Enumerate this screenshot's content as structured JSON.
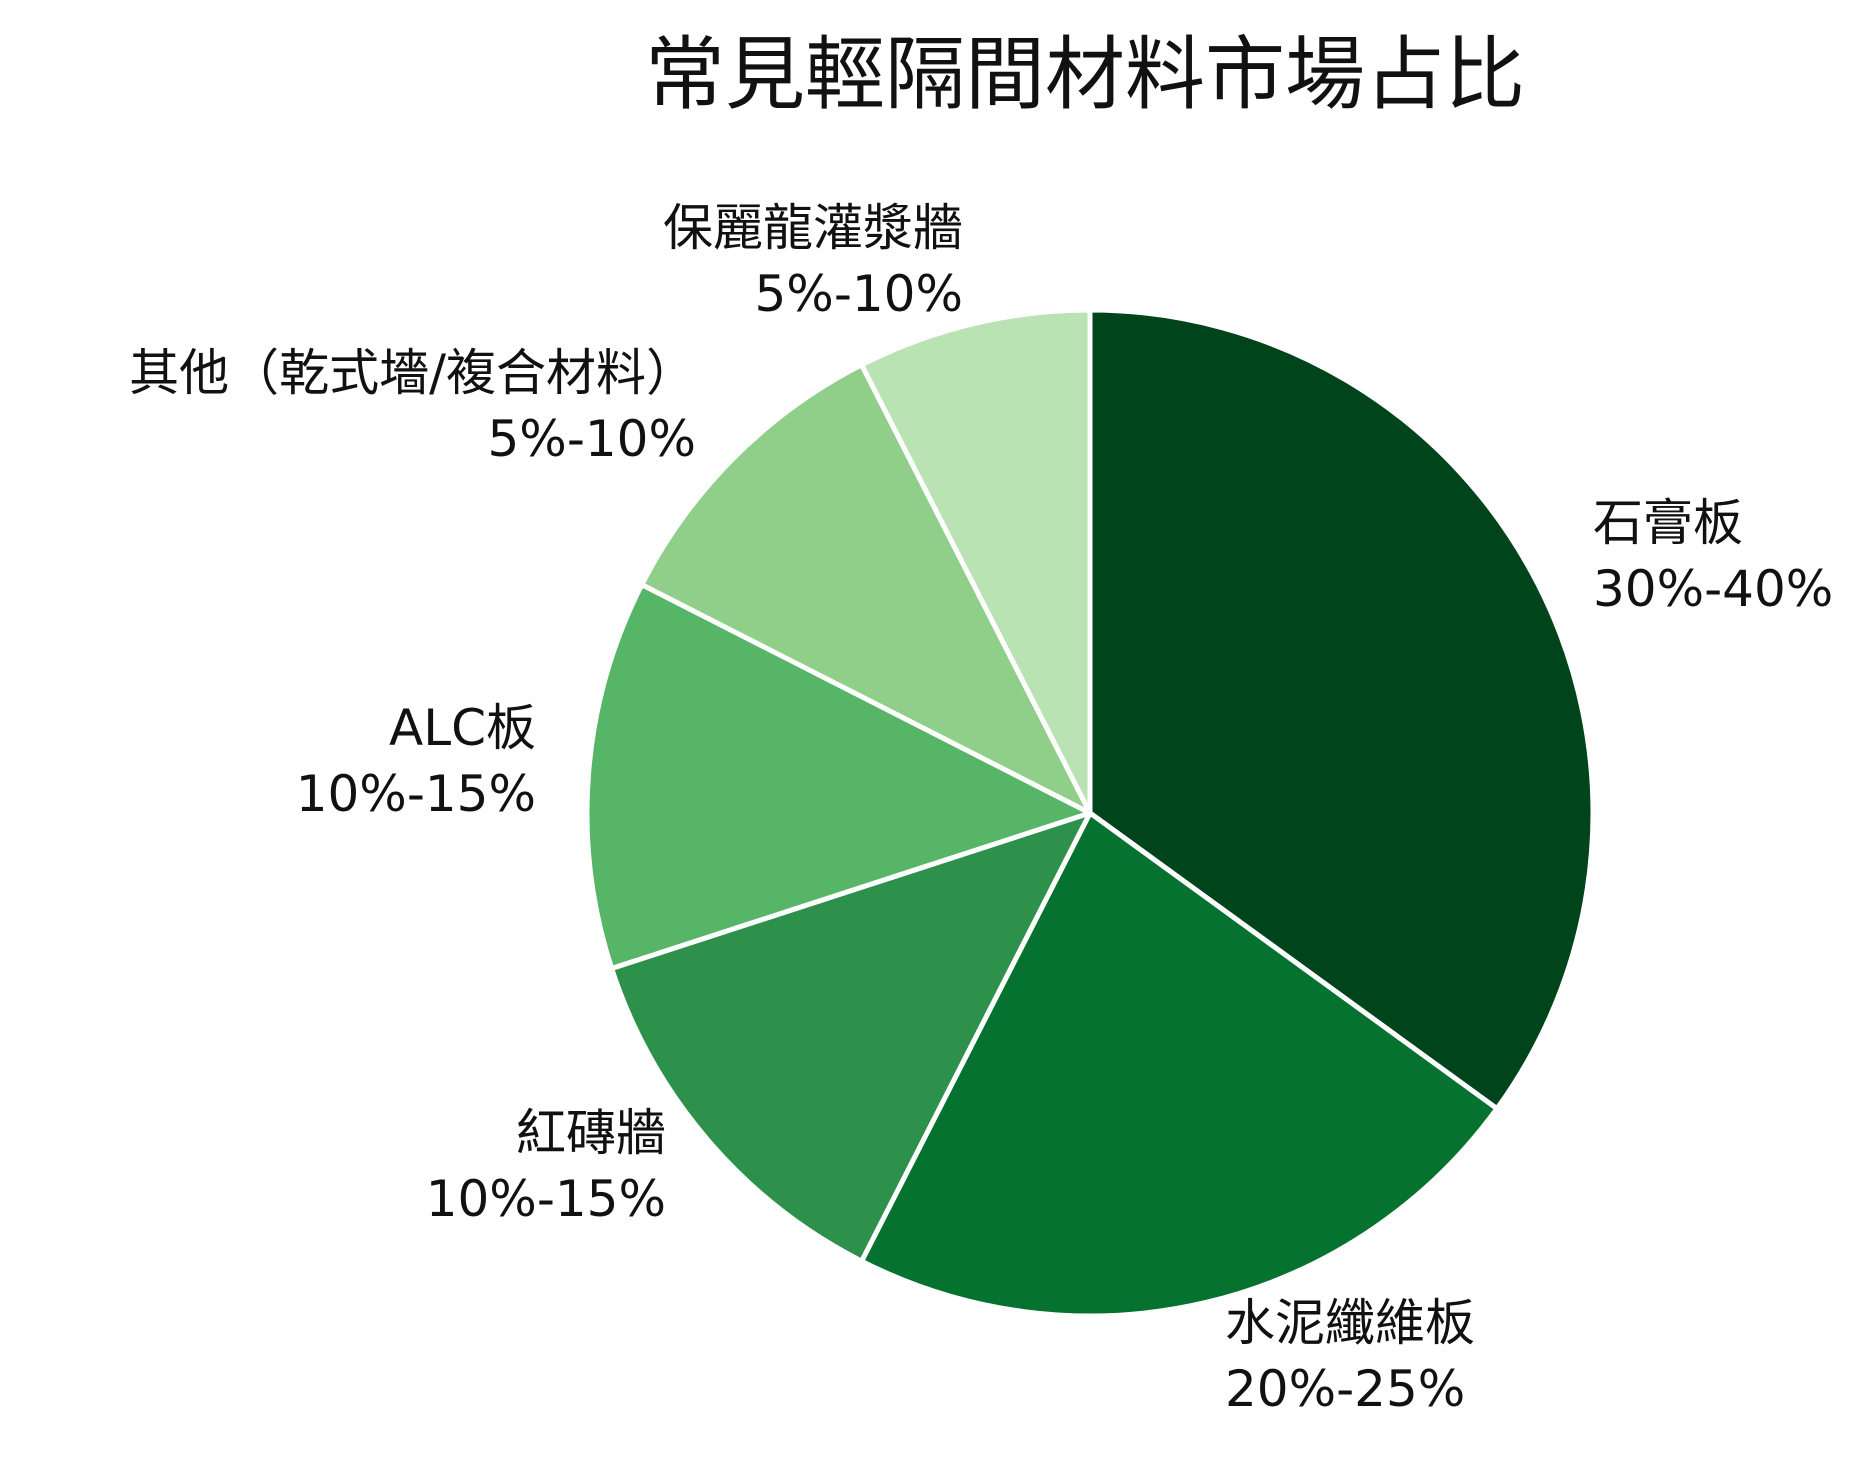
{
  "chart_data": {
    "type": "pie",
    "title": "常見輕隔間材料市場占比",
    "slices": [
      {
        "label": "石膏板",
        "range": "30%-40%",
        "value": 35,
        "color": "#00441b"
      },
      {
        "label": "水泥纖維板",
        "range": "20%-25%",
        "value": 22.5,
        "color": "#067230"
      },
      {
        "label": "紅磚牆",
        "range": "10%-15%",
        "value": 12.5,
        "color": "#2d914b"
      },
      {
        "label": "ALC板",
        "range": "10%-15%",
        "value": 12.5,
        "color": "#56b567"
      },
      {
        "label": "其他（乾式墻/複合材料）",
        "range": "5%-10%",
        "value": 10,
        "color": "#8fcf89"
      },
      {
        "label": "保麗龍灌漿牆",
        "range": "5%-10%",
        "value": 7.5,
        "color": "#b9e3b2"
      }
    ],
    "start_angle": "12 o'clock",
    "direction": "clockwise",
    "legend": "none"
  }
}
